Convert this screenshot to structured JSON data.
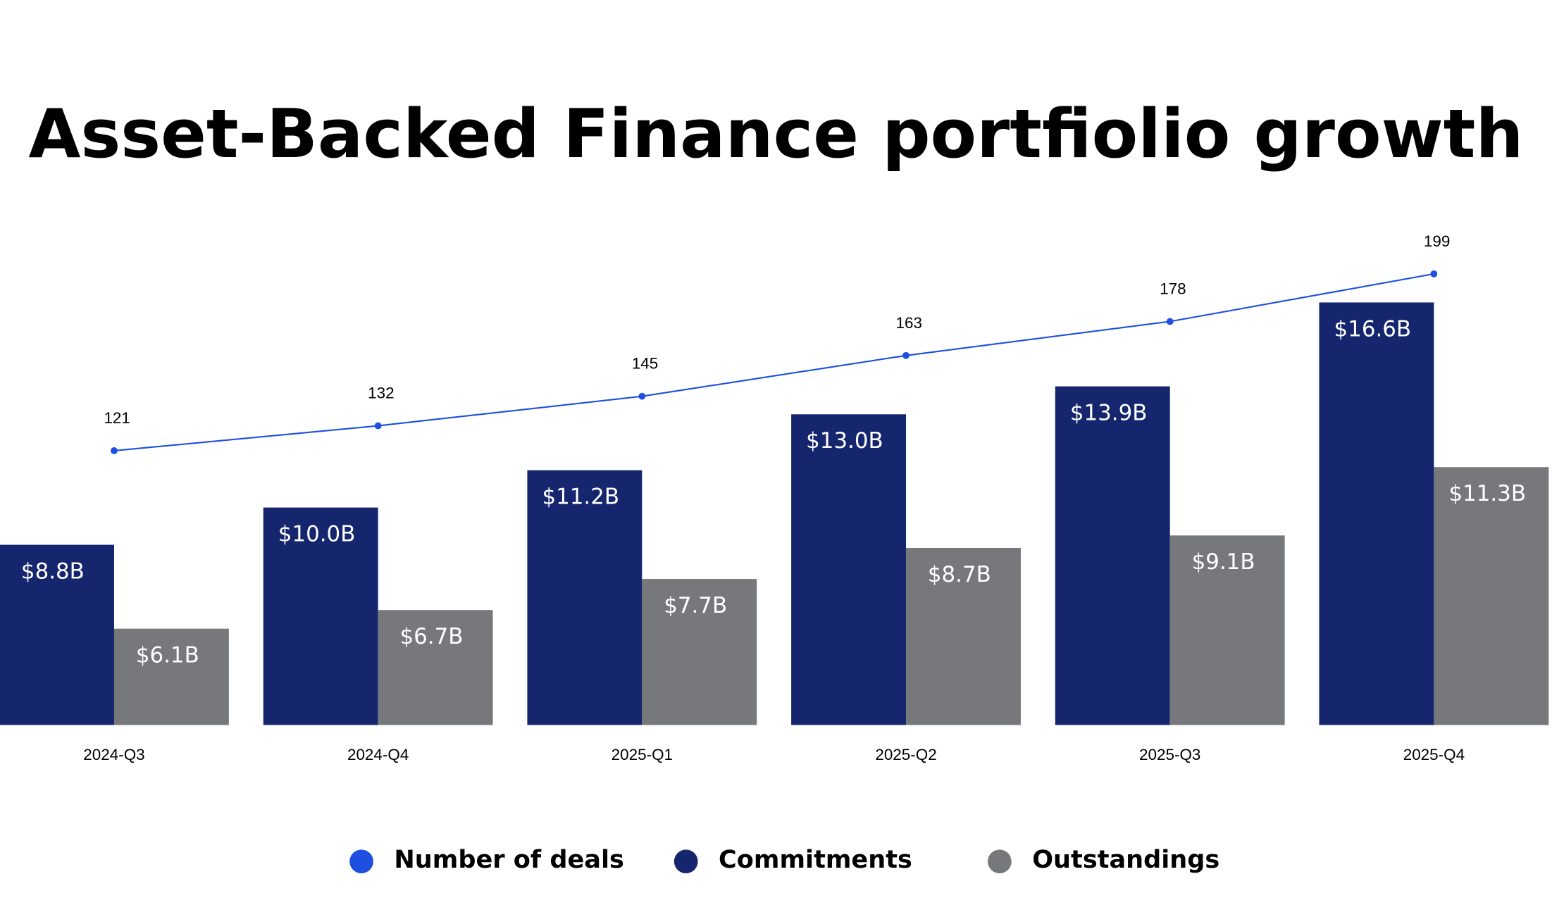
{
  "chart_data": {
    "type": "bar-line",
    "title": "Asset-Backed Finance portfiolio growth",
    "categories": [
      "2024-Q3",
      "2024-Q4",
      "2025-Q1",
      "2025-Q2",
      "2025-Q3",
      "2025-Q4"
    ],
    "ylim": [
      3,
      20
    ],
    "y2lim": [
      0,
      233
    ],
    "series": [
      {
        "name": "Number of deals",
        "color": "#1d4fe0",
        "type": "line",
        "axis": "y2",
        "values": [
          121,
          132,
          145,
          163,
          178,
          199
        ]
      },
      {
        "name": "Commitments",
        "color": "#16266e",
        "type": "bar",
        "values": [
          8.8,
          10.0,
          11.2,
          13.0,
          13.9,
          16.6
        ],
        "value_labels": [
          "$8.8B",
          "$10.0B",
          "$11.2B",
          "$13.0B",
          "$13.9B",
          "$16.6B"
        ]
      },
      {
        "name": "Outstandings",
        "color": "#76787b",
        "type": "bar",
        "values": [
          6.1,
          6.7,
          7.7,
          8.7,
          9.1,
          11.3
        ],
        "value_labels": [
          "$6.1B",
          "$6.7B",
          "$7.7B",
          "$8.7B",
          "$9.1B",
          "$11.3B"
        ]
      }
    ]
  }
}
